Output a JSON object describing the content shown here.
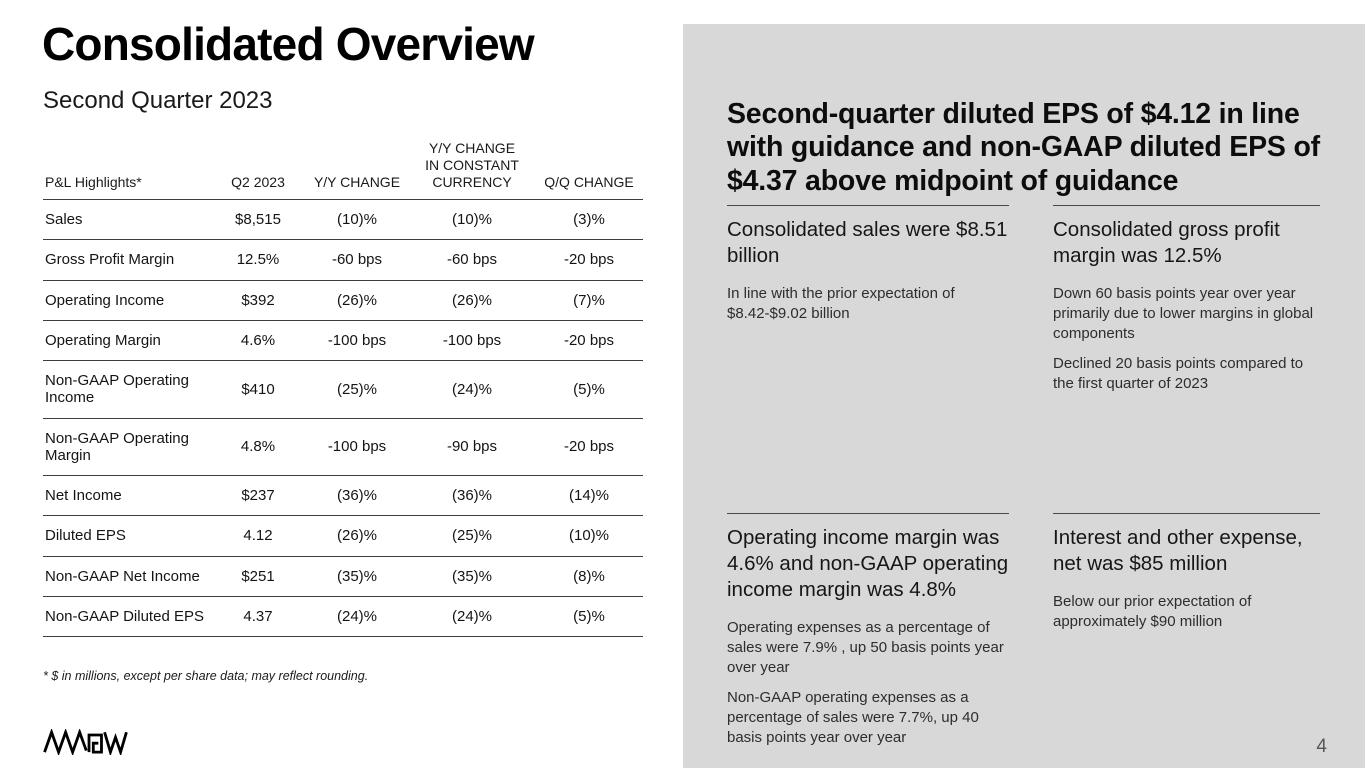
{
  "left": {
    "title": "Consolidated Overview",
    "subtitle": "Second Quarter 2023",
    "footnote": "* $ in millions, except per share data; may reflect rounding.",
    "logo": "ARROW"
  },
  "table": {
    "headers": [
      "P&L Highlights*",
      "Q2 2023",
      "Y/Y CHANGE",
      "Y/Y CHANGE\nIN CONSTANT\nCURRENCY",
      "Q/Q CHANGE"
    ],
    "rows": [
      [
        "Sales",
        "$8,515",
        "(10)%",
        "(10)%",
        "(3)%"
      ],
      [
        "Gross Profit Margin",
        "12.5%",
        "-60 bps",
        "-60 bps",
        "-20 bps"
      ],
      [
        "Operating Income",
        "$392",
        "(26)%",
        "(26)%",
        "(7)%"
      ],
      [
        "Operating Margin",
        "4.6%",
        "-100 bps",
        "-100 bps",
        "-20 bps"
      ],
      [
        "Non-GAAP Operating Income",
        "$410",
        "(25)%",
        "(24)%",
        "(5)%"
      ],
      [
        "Non-GAAP Operating Margin",
        "4.8%",
        "-100 bps",
        "-90 bps",
        "-20 bps"
      ],
      [
        "Net Income",
        "$237",
        "(36)%",
        "(36)%",
        "(14)%"
      ],
      [
        "Diluted EPS",
        "4.12",
        "(26)%",
        "(25)%",
        "(10)%"
      ],
      [
        "Non-GAAP Net Income",
        "$251",
        "(35)%",
        "(35)%",
        "(8)%"
      ],
      [
        "Non-GAAP Diluted EPS",
        "4.37",
        "(24)%",
        "(24)%",
        "(5)%"
      ]
    ]
  },
  "right": {
    "headline": "Second-quarter diluted EPS of $4.12 in line with guidance and non-GAAP diluted EPS of $4.37 above midpoint of guidance",
    "quadrants": [
      {
        "heading": "Consolidated sales were $8.51 billion",
        "paragraphs": [
          "In line with the prior expectation of $8.42-$9.02 billion"
        ]
      },
      {
        "heading": "Consolidated gross profit margin was 12.5%",
        "paragraphs": [
          "Down 60 basis points year over year primarily due to lower margins in global components",
          "Declined 20 basis points compared to the first quarter of 2023"
        ]
      },
      {
        "heading": "Operating income margin was 4.6% and non-GAAP operating income margin was 4.8%",
        "paragraphs": [
          "Operating expenses as a percentage of sales were 7.9% , up 50 basis points year over year",
          "Non-GAAP operating expenses as a percentage of sales were 7.7%, up 40 basis points year over year"
        ]
      },
      {
        "heading": "Interest and other expense, net was $85 million",
        "paragraphs": [
          "Below our prior expectation of approximately $90 million"
        ]
      }
    ]
  },
  "colors": {
    "panel_gray": "#d8d8d8",
    "rule_dark": "#3d3d3d",
    "text_black": "#0d0d0d"
  },
  "page": {
    "number": "4"
  }
}
